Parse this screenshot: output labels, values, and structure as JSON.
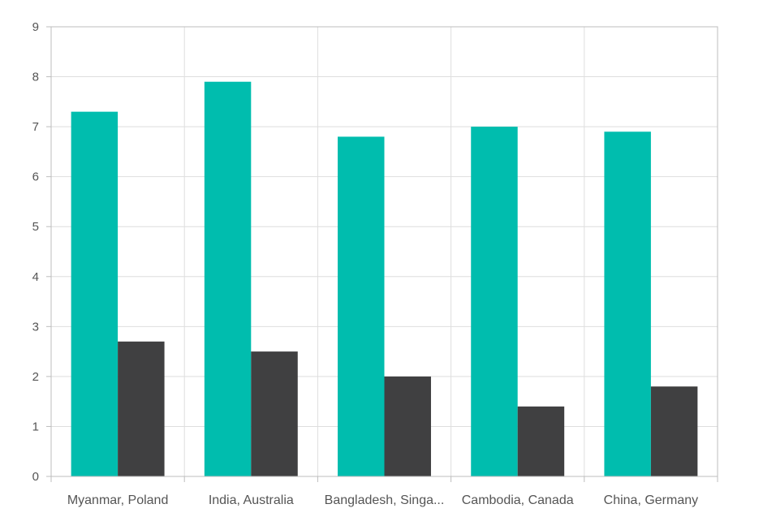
{
  "chart_data": {
    "type": "bar",
    "categories": [
      "Myanmar, Poland",
      "India, Australia",
      "Bangladesh, Singa...",
      "Cambodia, Canada",
      "China, Germany"
    ],
    "series": [
      {
        "values": [
          7.3,
          7.9,
          6.8,
          7.0,
          6.9
        ],
        "color": "#00bdae"
      },
      {
        "values": [
          2.7,
          2.5,
          2.0,
          1.4,
          1.8
        ],
        "color": "#404041"
      }
    ],
    "y_ticks": [
      "0",
      "1",
      "2",
      "3",
      "4",
      "5",
      "6",
      "7",
      "8",
      "9"
    ],
    "ylim": [
      0,
      9
    ],
    "grid": true,
    "legend": "none"
  }
}
